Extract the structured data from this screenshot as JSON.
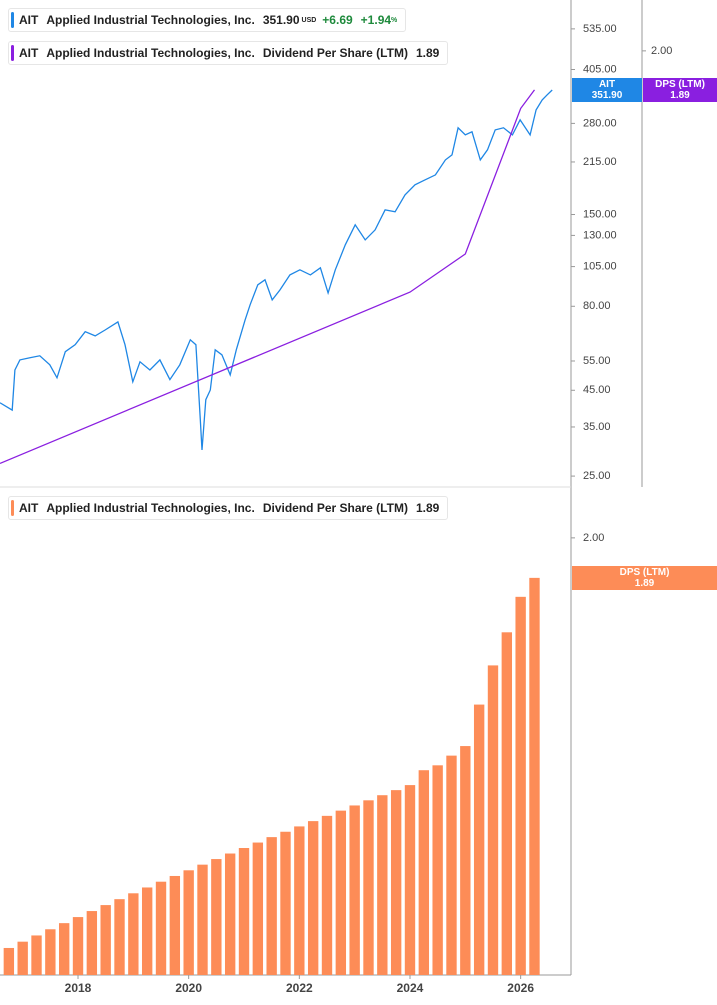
{
  "chart_data": [
    {
      "type": "line",
      "log_y": true,
      "log_y2": true,
      "xlim": [
        2016.59,
        2026.91
      ],
      "ylim": [
        23.2,
        652
      ],
      "yticks": [
        {
          "value": 535,
          "label": "535.00"
        },
        {
          "value": 405,
          "label": "405.00"
        },
        {
          "value": 280,
          "label": "280.00"
        },
        {
          "value": 215,
          "label": "215.00"
        },
        {
          "value": 150,
          "label": "150.00"
        },
        {
          "value": 130,
          "label": "130.00"
        },
        {
          "value": 105,
          "label": "105.00"
        },
        {
          "value": 80,
          "label": "80.00"
        },
        {
          "value": 55,
          "label": "55.00"
        },
        {
          "value": 45,
          "label": "45.00"
        },
        {
          "value": 35,
          "label": "35.00"
        },
        {
          "value": 25,
          "label": "25.00"
        }
      ],
      "y2lim": [
        1.063,
        2.153
      ],
      "y2ticks": [
        {
          "value": 2,
          "label": "2.00"
        }
      ],
      "series": [
        {
          "ticker": "AIT",
          "name": "Applied Industrial Technologies, Inc.",
          "last": "351.90",
          "currency": "USD",
          "change": "+6.69",
          "change_pct": "+1.94",
          "pct_sign": "%",
          "color": "#1f87e5",
          "x": [
            2016.59,
            2016.81,
            2016.86,
            2016.95,
            2017.13,
            2017.31,
            2017.49,
            2017.62,
            2017.77,
            2017.95,
            2018.13,
            2018.31,
            2018.49,
            2018.72,
            2018.85,
            2018.99,
            2019.12,
            2019.3,
            2019.48,
            2019.66,
            2019.84,
            2020.03,
            2020.13,
            2020.21,
            2020.24,
            2020.31,
            2020.39,
            2020.48,
            2020.6,
            2020.75,
            2020.86,
            2021.02,
            2021.11,
            2021.25,
            2021.38,
            2021.51,
            2021.65,
            2021.83,
            2022.01,
            2022.2,
            2022.38,
            2022.52,
            2022.65,
            2022.83,
            2023.01,
            2023.19,
            2023.37,
            2023.55,
            2023.73,
            2023.91,
            2024.09,
            2024.27,
            2024.46,
            2024.64,
            2024.76,
            2024.87,
            2025.0,
            2025.12,
            2025.27,
            2025.4,
            2025.54,
            2025.69,
            2025.85,
            2025.99,
            2026.17,
            2026.28,
            2026.39,
            2026.48,
            2026.57
          ],
          "values": [
            41.3,
            39.3,
            51.7,
            55.4,
            56.2,
            57.0,
            53.6,
            49.0,
            58.6,
            61.5,
            67.2,
            65.3,
            68.0,
            71.9,
            61.5,
            47.7,
            54.7,
            51.7,
            55.4,
            48.4,
            53.6,
            63.6,
            61.5,
            36.8,
            29.9,
            42.2,
            45.1,
            59.4,
            57.4,
            50.0,
            59.4,
            72.9,
            80.8,
            92.7,
            95.9,
            83.6,
            89.5,
            99.2,
            102.7,
            99.2,
            104.1,
            87.7,
            102.7,
            121.9,
            139.8,
            126.1,
            135.0,
            154.8,
            152.8,
            171.6,
            183.8,
            190.2,
            196.8,
            218.1,
            225.7,
            271.6,
            258.8,
            264.3,
            218.1,
            233.6,
            267.8,
            271.6,
            258.8,
            286.9,
            258.8,
            307.2,
            329.0,
            340.5,
            351.9
          ]
        },
        {
          "ticker": "AIT",
          "name": "Applied Industrial Technologies, Inc.",
          "metric": "Dividend Per Share (LTM)",
          "last": 1.89,
          "tag": "DPS (LTM)",
          "color": "#8a1fe0",
          "axis": "y2",
          "x": [
            2016.59,
            2024.0,
            2025.0,
            2026.0,
            2026.25
          ],
          "values": [
            1.1,
            1.41,
            1.49,
            1.84,
            1.89
          ]
        }
      ]
    },
    {
      "type": "bar",
      "log_y": true,
      "ticker": "AIT",
      "name": "Applied Industrial Technologies, Inc.",
      "metric": "Dividend Per Share (LTM)",
      "last": 1.89,
      "tag": "DPS (LTM)",
      "color": "#fd8c57",
      "xlim": [
        2016.59,
        2026.91
      ],
      "xticks": [
        2018,
        2020,
        2022,
        2024,
        2026
      ],
      "ylim": [
        1.078,
        2.14
      ],
      "yticks": [
        {
          "value": 2,
          "label": "2.00"
        }
      ],
      "x": [
        2016.75,
        2017,
        2017.25,
        2017.5,
        2017.75,
        2018,
        2018.25,
        2018.5,
        2018.75,
        2019,
        2019.25,
        2019.5,
        2019.75,
        2020,
        2020.25,
        2020.5,
        2020.75,
        2021,
        2021.25,
        2021.5,
        2021.75,
        2022,
        2022.25,
        2022.5,
        2022.75,
        2023,
        2023.25,
        2023.5,
        2023.75,
        2024,
        2024.25,
        2024.5,
        2024.75,
        2025,
        2025.25,
        2025.5,
        2025.75,
        2026,
        2026.25
      ],
      "values": [
        1.12,
        1.13,
        1.14,
        1.15,
        1.16,
        1.17,
        1.18,
        1.19,
        1.2,
        1.21,
        1.22,
        1.23,
        1.24,
        1.25,
        1.26,
        1.27,
        1.28,
        1.29,
        1.3,
        1.31,
        1.32,
        1.33,
        1.34,
        1.35,
        1.36,
        1.37,
        1.38,
        1.39,
        1.4,
        1.41,
        1.44,
        1.45,
        1.47,
        1.49,
        1.58,
        1.67,
        1.75,
        1.84,
        1.89
      ]
    }
  ]
}
